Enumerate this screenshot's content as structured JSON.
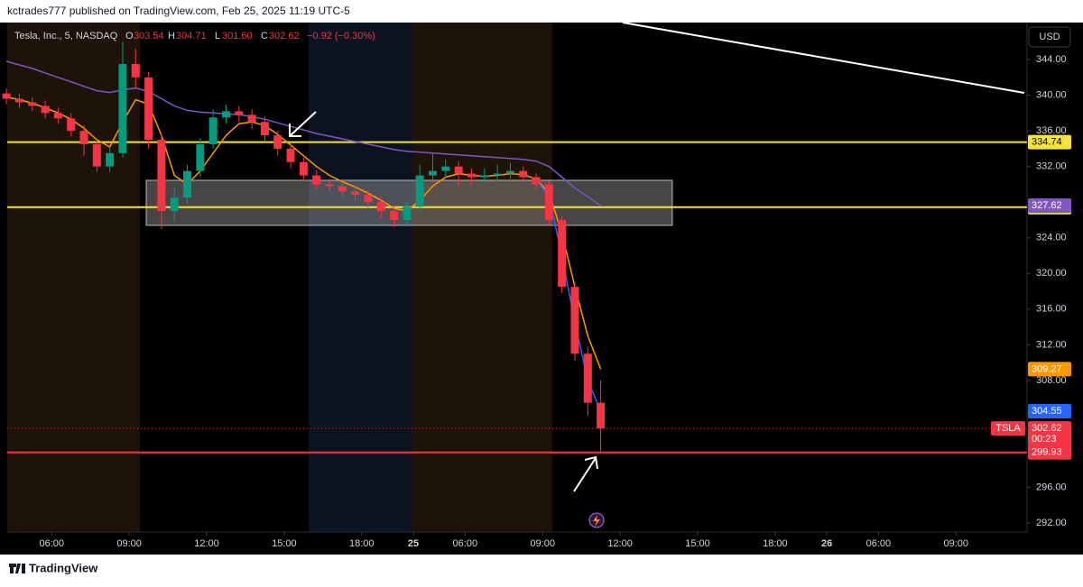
{
  "header": {
    "publisher": "kctrades777 published on TradingView.com, Feb 25, 2025 11:19 UTC-5"
  },
  "legend": {
    "symbol": "Tesla, Inc., 5, NASDAQ",
    "o_label": "O",
    "o": "303.54",
    "h_label": "H",
    "h": "304.71",
    "l_label": "L",
    "l": "301.60",
    "c_label": "C",
    "c": "302.62",
    "change": "−0.92 (−0.30%)"
  },
  "footer": {
    "brand": "TradingView"
  },
  "chart_data": {
    "type": "candlestick",
    "currency": "USD",
    "x": [
      0.25,
      0.75,
      1.25,
      1.75,
      2.25,
      2.75,
      3.25,
      3.75,
      4.25,
      4.75,
      5.25,
      5.75,
      6.25,
      6.75,
      7.25,
      7.75,
      8.25,
      8.75,
      9.25,
      9.75,
      10.25,
      10.75,
      11.25,
      11.75,
      12.25,
      12.75,
      13.25,
      13.75,
      14.25,
      14.75,
      15.25,
      15.75,
      16.25,
      16.75,
      17.25,
      17.75,
      18.25,
      18.75,
      19.25,
      19.75,
      20.25,
      20.75,
      21.25,
      21.75,
      22.25,
      22.75,
      23.25
    ],
    "open": [
      340.2,
      339.6,
      339.2,
      338.8,
      338.0,
      337.4,
      336.0,
      334.5,
      332.0,
      333.5,
      343.5,
      342.0,
      335.0,
      327.0,
      328.5,
      331.5,
      334.5,
      337.5,
      338.2,
      337.8,
      337.0,
      335.5,
      334.0,
      332.5,
      331.0,
      330.0,
      329.8,
      329.2,
      328.8,
      328.0,
      327.0,
      326.0,
      327.5,
      331.0,
      331.5,
      332.0,
      331.2,
      330.8,
      331.0,
      331.2,
      331.5,
      330.8,
      330.0,
      326.0,
      318.5,
      311.0,
      305.5
    ],
    "high": [
      340.8,
      340.2,
      339.8,
      339.4,
      338.6,
      338.0,
      336.6,
      335.0,
      334.2,
      346.0,
      345.2,
      342.6,
      335.6,
      329.6,
      332.2,
      335.2,
      338.4,
      339.0,
      338.8,
      338.4,
      337.6,
      336.0,
      334.6,
      333.0,
      331.6,
      330.6,
      330.4,
      329.8,
      329.4,
      328.6,
      327.6,
      328.0,
      332.2,
      333.4,
      332.8,
      332.6,
      331.8,
      331.8,
      332.2,
      332.4,
      332.0,
      331.2,
      330.4,
      326.4,
      319.0,
      311.8,
      308.0
    ],
    "low": [
      339.0,
      338.6,
      338.2,
      337.4,
      336.8,
      335.4,
      333.2,
      331.4,
      331.4,
      333.0,
      340.8,
      334.0,
      325.0,
      325.8,
      327.8,
      330.8,
      334.0,
      336.8,
      337.0,
      336.2,
      334.8,
      333.2,
      331.8,
      330.4,
      329.4,
      329.2,
      328.6,
      328.2,
      327.4,
      326.2,
      325.2,
      325.4,
      327.0,
      330.2,
      330.8,
      329.8,
      330.0,
      330.2,
      330.4,
      330.6,
      330.2,
      329.4,
      325.4,
      317.8,
      310.2,
      304.0,
      299.93
    ],
    "close": [
      339.6,
      339.2,
      338.8,
      338.0,
      337.4,
      336.0,
      334.5,
      332.0,
      333.5,
      343.5,
      342.0,
      335.0,
      327.0,
      328.5,
      331.5,
      334.5,
      337.5,
      338.2,
      337.8,
      337.0,
      335.5,
      334.0,
      332.5,
      331.0,
      330.0,
      329.8,
      329.2,
      328.8,
      328.0,
      327.0,
      326.0,
      327.5,
      331.0,
      331.5,
      332.0,
      331.2,
      330.8,
      331.0,
      331.2,
      331.5,
      330.8,
      330.0,
      326.0,
      318.5,
      311.0,
      305.5,
      302.62
    ],
    "up_color": "#089981",
    "down_color": "#f23645",
    "overlays": [
      {
        "color": "#7e57c2",
        "values": [
          343.8,
          343.4,
          343.0,
          342.5,
          342.0,
          341.5,
          341.0,
          340.5,
          340.3,
          340.6,
          340.8,
          340.4,
          339.6,
          338.8,
          338.3,
          338.1,
          338.0,
          337.9,
          337.8,
          337.6,
          337.3,
          336.9,
          336.5,
          336.1,
          335.7,
          335.4,
          335.1,
          334.8,
          334.5,
          334.2,
          333.9,
          333.7,
          333.6,
          333.5,
          333.4,
          333.3,
          333.2,
          333.1,
          333.0,
          332.9,
          332.8,
          332.6,
          332.0,
          330.8,
          329.6,
          328.6,
          327.62
        ]
      },
      {
        "color": "#ff9800",
        "values": [
          339.8,
          339.5,
          339.1,
          338.6,
          338.0,
          337.3,
          336.3,
          335.0,
          334.2,
          337.0,
          339.5,
          339.0,
          335.5,
          331.0,
          330.0,
          331.5,
          333.5,
          335.5,
          336.8,
          337.0,
          336.6,
          335.6,
          334.4,
          333.2,
          332.0,
          331.0,
          330.3,
          329.7,
          329.0,
          328.2,
          327.3,
          327.0,
          328.2,
          329.8,
          330.8,
          331.2,
          331.0,
          330.9,
          331.0,
          331.2,
          331.1,
          330.6,
          329.0,
          324.5,
          318.5,
          313.0,
          309.27
        ]
      },
      {
        "color": "#2962ff",
        "values": [
          null,
          null,
          null,
          null,
          null,
          null,
          null,
          null,
          null,
          null,
          null,
          null,
          null,
          null,
          null,
          null,
          null,
          null,
          null,
          null,
          null,
          null,
          null,
          null,
          null,
          null,
          null,
          null,
          null,
          null,
          null,
          null,
          null,
          null,
          null,
          null,
          null,
          null,
          null,
          null,
          null,
          330.6,
          328.5,
          322.0,
          314.5,
          308.0,
          304.55
        ]
      }
    ],
    "levels": [
      {
        "value": 334.74,
        "color": "#f5e33b"
      },
      {
        "value": 327.44,
        "color": "#f5e33b"
      },
      {
        "value": 299.93,
        "color": "#f23645"
      }
    ],
    "last_price": {
      "symbol": "TSLA",
      "value": 302.62,
      "countdown": "00:23",
      "color": "#f23645"
    },
    "zone": {
      "x": [
        5.66,
        26.02
      ],
      "y": [
        325.4,
        330.45
      ]
    },
    "trendline": {
      "x": [
        24.1,
        39.64
      ],
      "y": [
        348.15,
        340.26
      ]
    },
    "xlim": [
      0.28,
      39.75
    ],
    "ylim": [
      291,
      348.15
    ],
    "xticks": [
      {
        "value": 2,
        "label": "06:00"
      },
      {
        "value": 5,
        "label": "09:00"
      },
      {
        "value": 8,
        "label": "12:00"
      },
      {
        "value": 11,
        "label": "15:00"
      },
      {
        "value": 14,
        "label": "18:00"
      },
      {
        "value": 16,
        "label": "25"
      },
      {
        "value": 18,
        "label": "06:00"
      },
      {
        "value": 21,
        "label": "09:00"
      },
      {
        "value": 24,
        "label": "12:00"
      },
      {
        "value": 27,
        "label": "15:00"
      },
      {
        "value": 30,
        "label": "18:00"
      },
      {
        "value": 32,
        "label": "26"
      },
      {
        "value": 34,
        "label": "06:00"
      },
      {
        "value": 37,
        "label": "09:00"
      }
    ],
    "yticks": [
      {
        "value": 292,
        "label": "292.00"
      },
      {
        "value": 296,
        "label": "296.00"
      },
      {
        "value": 308,
        "label": "308.00"
      },
      {
        "value": 312,
        "label": "312.00"
      },
      {
        "value": 316,
        "label": "316.00"
      },
      {
        "value": 320,
        "label": "320.00"
      },
      {
        "value": 324,
        "label": "324.00"
      },
      {
        "value": 332,
        "label": "332.00"
      },
      {
        "value": 336,
        "label": "336.00"
      },
      {
        "value": 340,
        "label": "340.00"
      },
      {
        "value": 344,
        "label": "344.00"
      }
    ]
  }
}
